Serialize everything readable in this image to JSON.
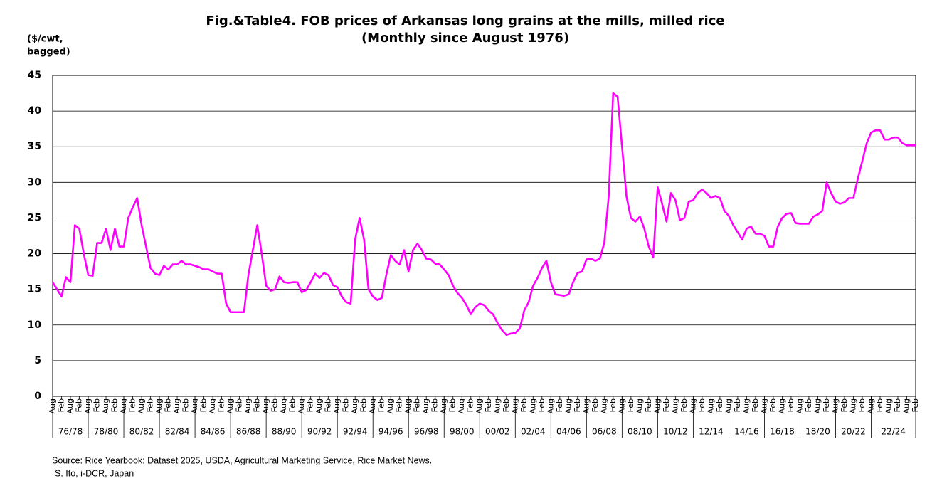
{
  "chart_data": {
    "type": "line",
    "title": "Fig.&Table4. FOB prices of Arkansas long grains at the mills, milled rice",
    "subtitle": "(Monthly since August 1976)",
    "ylabel": [
      "($/cwt,",
      "bagged)"
    ],
    "source": "Source:  Rice Yearbook: Dataset 2025, USDA, Agricultural Marketing Service, Rice Market News.",
    "credit": "S. Ito, i-DCR, Japan",
    "ylim": [
      0,
      45
    ],
    "yticks": [
      0,
      5,
      10,
      15,
      20,
      25,
      30,
      35,
      40,
      45
    ],
    "grid": true,
    "periods": [
      "76/78",
      "78/80",
      "80/82",
      "82/84",
      "84/86",
      "86/88",
      "88/90",
      "90/92",
      "92/94",
      "94/96",
      "96/98",
      "98/00",
      "00/02",
      "02/04",
      "04/06",
      "06/08",
      "08/10",
      "10/12",
      "12/14",
      "14/16",
      "16/18",
      "18/20",
      "20/22",
      "22/24"
    ],
    "categories": [
      "Aug",
      null,
      "Feb",
      null,
      "Aug",
      null,
      "Feb",
      null,
      "Aug",
      null,
      "Feb",
      null,
      "Aug",
      null,
      "Feb",
      null,
      "Aug",
      null,
      "Feb",
      null,
      "Aug",
      null,
      "Feb",
      null,
      "Aug",
      null,
      "Feb",
      null,
      "Aug",
      null,
      "Feb",
      null,
      "Aug",
      null,
      "Feb",
      null,
      "Aug",
      null,
      "Feb",
      null,
      "Aug",
      null,
      "Feb",
      null,
      "Aug",
      null,
      "Feb",
      null,
      "Aug",
      null,
      "Feb",
      null,
      "Aug",
      null,
      "Feb",
      null,
      "Aug",
      null,
      "Feb",
      null,
      "Aug",
      null,
      "Feb",
      null,
      "Aug",
      null,
      "Feb",
      null,
      "Aug",
      null,
      "Feb",
      null,
      "Aug",
      null,
      "Feb",
      null,
      "Aug",
      null,
      "Feb",
      null,
      "Aug",
      null,
      "Feb",
      null,
      "Aug",
      null,
      "Feb",
      null,
      "Aug",
      null,
      "Feb",
      null,
      "Aug",
      null,
      "Feb",
      null,
      "Aug",
      null,
      "Feb",
      null,
      "Aug",
      null,
      "Feb",
      null,
      "Aug",
      null,
      "Feb",
      null,
      "Aug",
      null,
      "Feb",
      null,
      "Aug",
      null,
      "Feb",
      null,
      "Aug",
      null,
      "Feb",
      null,
      "Aug",
      null,
      "Feb",
      null,
      "Aug",
      null,
      "Feb",
      null,
      "Aug",
      null,
      "Feb",
      null,
      "Aug",
      null,
      "Feb",
      null,
      "Aug",
      null,
      "Feb",
      null,
      "Aug",
      null,
      "Feb",
      null,
      "Aug",
      null,
      "Feb",
      null,
      "Aug",
      null,
      "Feb",
      null,
      "Aug",
      null,
      "Feb",
      null,
      "Aug",
      null,
      "Feb",
      null,
      "Aug",
      null,
      "Feb",
      null,
      "Aug",
      null,
      "Feb",
      null,
      "Aug",
      null,
      "Feb",
      null,
      "Aug",
      null,
      "Feb",
      null,
      "Aug",
      null,
      "Feb",
      null,
      "Aug",
      null,
      "Feb",
      null,
      "Aug",
      null,
      "Feb",
      null,
      "Aug",
      null,
      "Feb",
      null,
      "Aug",
      null,
      "Feb"
    ],
    "series": [
      {
        "name": "FOB price",
        "color": "#ff00ff",
        "values": [
          16,
          15,
          14,
          16.7,
          16,
          24,
          23.5,
          20,
          17,
          16.9,
          21.5,
          21.5,
          23.5,
          20.5,
          23.5,
          21,
          21,
          25,
          26.5,
          27.8,
          24,
          21,
          18,
          17.2,
          17,
          18.3,
          17.8,
          18.5,
          18.5,
          19,
          18.5,
          18.5,
          18.3,
          18.1,
          17.8,
          17.8,
          17.5,
          17.2,
          17.2,
          13,
          11.8,
          11.8,
          11.8,
          11.8,
          17,
          20.5,
          24,
          20,
          15.5,
          14.8,
          15,
          16.8,
          16,
          15.9,
          16,
          16,
          14.6,
          14.9,
          16,
          17.2,
          16.6,
          17.3,
          17,
          15.6,
          15.3,
          14,
          13.2,
          13,
          22,
          25,
          22,
          15,
          14,
          13.5,
          13.8,
          17,
          19.8,
          19,
          18.5,
          20.5,
          17.5,
          20.5,
          21.4,
          20.5,
          19.3,
          19.2,
          18.6,
          18.5,
          17.8,
          17,
          15.5,
          14.5,
          13.8,
          12.8,
          11.5,
          12.5,
          13,
          12.8,
          12,
          11.5,
          10.3,
          9.3,
          8.6,
          8.8,
          8.9,
          9.5,
          12,
          13.2,
          15.5,
          16.6,
          18,
          19,
          16,
          14.3,
          14.2,
          14.1,
          14.3,
          16,
          17.3,
          17.5,
          19.2,
          19.3,
          19,
          19.3,
          21.5,
          28,
          42.5,
          42,
          35,
          28,
          25,
          24.5,
          25.2,
          23.5,
          21,
          19.5,
          29.3,
          27,
          24.5,
          28.5,
          27.5,
          24.7,
          25,
          27.3,
          27.5,
          28.5,
          29,
          28.5,
          27.8,
          28.1,
          27.8,
          26,
          25.3,
          24,
          23,
          22,
          23.5,
          23.8,
          22.8,
          22.8,
          22.5,
          21,
          21,
          23.8,
          25,
          25.6,
          25.7,
          24.3,
          24.2,
          24.2,
          24.2,
          25.2,
          25.5,
          26,
          30,
          28.5,
          27.3,
          27,
          27.2,
          27.8,
          27.8,
          30.5,
          33,
          35.5,
          37,
          37.3,
          37.3,
          36,
          36,
          36.3,
          36.3,
          35.5,
          35.2,
          35.2,
          35.2
        ]
      }
    ]
  }
}
